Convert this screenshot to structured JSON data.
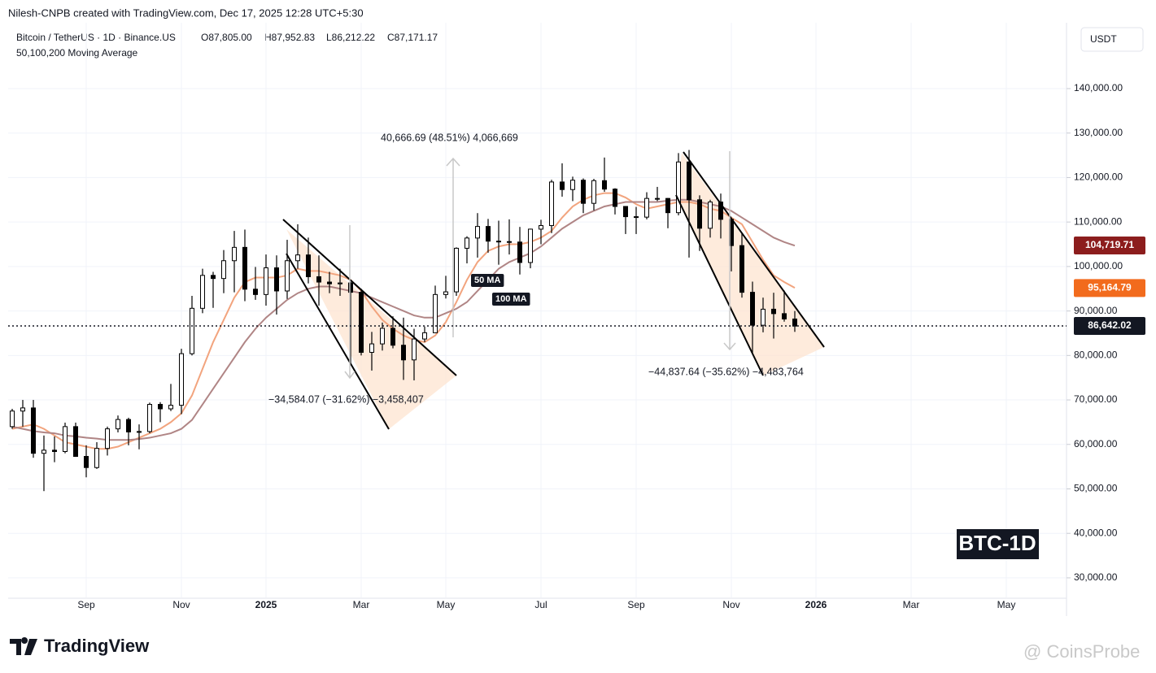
{
  "chart_data": {
    "type": "candlestick",
    "header": "Nilesh-CNPB created with TradingView.com, Dec 17, 2025 12:28 UTC+5:30",
    "symbol": "Bitcoin / TetherUS · 1D · Binance.US",
    "ohlc": [
      "O87,805.00",
      "H87,952.83",
      "L86,212.22",
      "C87,171.17"
    ],
    "indicator": "50,100,200 Moving Average",
    "currency": "USDT",
    "watermark": "BTC-1D",
    "brand": "TradingView",
    "credit": "@ CoinsProbe",
    "categories": [
      null,
      null,
      null,
      null,
      null,
      null,
      null,
      "Sep",
      null,
      null,
      null,
      null,
      null,
      null,
      null,
      null,
      "Nov",
      null,
      null,
      null,
      null,
      null,
      null,
      null,
      "2025",
      null,
      null,
      null,
      null,
      null,
      null,
      null,
      null,
      "Mar",
      null,
      null,
      null,
      null,
      null,
      null,
      null,
      "May",
      null,
      null,
      null,
      null,
      null,
      null,
      null,
      null,
      "Jul",
      null,
      null,
      null,
      null,
      null,
      null,
      null,
      null,
      "Sep",
      null,
      null,
      null,
      null,
      null,
      null,
      null,
      null,
      "Nov",
      null,
      null,
      null,
      null,
      null,
      null,
      null,
      "2026",
      null,
      null,
      null,
      null,
      null,
      null,
      null,
      null,
      "Mar",
      null,
      null,
      null,
      null,
      null,
      null,
      null,
      null,
      "May",
      null,
      null,
      null,
      null,
      null,
      null
    ],
    "open": [
      64000,
      67500,
      68200,
      58000,
      58700,
      58400,
      64000,
      57300,
      54800,
      59100,
      63500,
      65600,
      62800,
      62900,
      69000,
      68000,
      68800,
      80400,
      90600,
      98000,
      97300,
      101300,
      104300,
      94900,
      93700,
      99700,
      94500,
      101300,
      102600,
      97700,
      96500,
      96100,
      96300,
      94200,
      80700,
      82600,
      86100,
      82300,
      79000,
      83700,
      85100,
      93700,
      94300,
      104100,
      106400,
      109000,
      105700,
      105600,
      105500,
      100900,
      108400,
      109200,
      119000,
      117300,
      119400,
      114200,
      119300,
      117400,
      113500,
      111200,
      111100,
      115300,
      115300,
      112100,
      123500,
      115000,
      108600,
      114500,
      110600,
      104700,
      94200,
      86800,
      90400,
      89400,
      88200,
      null,
      null,
      null,
      null,
      null,
      null,
      null,
      null,
      null,
      null,
      null,
      null,
      null,
      null,
      null,
      null,
      null,
      null,
      null,
      null,
      null,
      null,
      null,
      null,
      null,
      null
    ],
    "high": [
      68000,
      70000,
      70000,
      62000,
      61800,
      64900,
      64900,
      59800,
      60500,
      64000,
      66500,
      66000,
      64500,
      69400,
      69500,
      73600,
      81500,
      93400,
      99500,
      98800,
      103700,
      108000,
      108300,
      99900,
      102700,
      102500,
      106000,
      109500,
      106500,
      102500,
      98800,
      99500,
      96500,
      95000,
      85300,
      87400,
      88800,
      88500,
      86000,
      86500,
      95700,
      97900,
      104300,
      106800,
      112000,
      110700,
      110300,
      110600,
      108900,
      108500,
      110500,
      119500,
      123200,
      120200,
      119800,
      119700,
      124500,
      117600,
      113600,
      113400,
      116700,
      117900,
      115400,
      125500,
      126200,
      116000,
      115000,
      116400,
      110700,
      107500,
      96600,
      93000,
      94100,
      94600,
      90000,
      null,
      null,
      null,
      null,
      null,
      null,
      null,
      null,
      null,
      null,
      null,
      null,
      null,
      null,
      null,
      null,
      null,
      null,
      null,
      null,
      null,
      null,
      null,
      null,
      null,
      null
    ],
    "low": [
      63500,
      64000,
      57000,
      49500,
      56000,
      58000,
      57200,
      52600,
      54500,
      57500,
      62700,
      59800,
      58900,
      62500,
      65000,
      67500,
      66800,
      80000,
      89500,
      90700,
      94000,
      94200,
      92200,
      92500,
      91200,
      89200,
      92700,
      99500,
      96200,
      91200,
      94000,
      93400,
      78200,
      80000,
      76600,
      81100,
      81600,
      74500,
      74400,
      83000,
      85000,
      92800,
      93400,
      100700,
      102000,
      103100,
      100400,
      102700,
      98200,
      99600,
      105000,
      107500,
      115700,
      114700,
      112000,
      112600,
      116800,
      111700,
      107300,
      107300,
      110600,
      114700,
      108600,
      111500,
      102000,
      103500,
      106500,
      106300,
      98900,
      93000,
      80600,
      85200,
      83800,
      87600,
      85300,
      null,
      null,
      null,
      null,
      null,
      null,
      null,
      null,
      null,
      null,
      null,
      null,
      null,
      null,
      null,
      null,
      null,
      null,
      null,
      null,
      null,
      null,
      null,
      null,
      null,
      null
    ],
    "close": [
      67500,
      68200,
      58000,
      58700,
      58400,
      64000,
      57300,
      54800,
      59100,
      63500,
      65600,
      62800,
      62900,
      69000,
      68000,
      68800,
      80400,
      90600,
      98000,
      97300,
      101300,
      104300,
      94900,
      93700,
      99700,
      94500,
      101300,
      102600,
      97700,
      96500,
      96100,
      96300,
      94200,
      80700,
      82600,
      86100,
      82300,
      79000,
      83700,
      85100,
      93700,
      94300,
      104100,
      106400,
      109000,
      105700,
      105600,
      105500,
      100900,
      108400,
      109200,
      119000,
      117300,
      119400,
      114200,
      119300,
      117400,
      113500,
      111200,
      111100,
      115300,
      115300,
      112100,
      123500,
      115000,
      108600,
      114500,
      110600,
      104700,
      94200,
      86800,
      90400,
      89400,
      88200,
      86600,
      null,
      null,
      null,
      null,
      null,
      null,
      null,
      null,
      null,
      null,
      null,
      null,
      null,
      null,
      null,
      null,
      null,
      null,
      null,
      null,
      null,
      null,
      null,
      null,
      null,
      null
    ],
    "series": [
      {
        "name": "50 MA",
        "color": "#f2a47e",
        "label_color": "#f26b1d",
        "last": {
          "value": 95164.79,
          "label": "95,164.79"
        },
        "values": [
          63500,
          64000,
          64500,
          63500,
          62000,
          60500,
          60000,
          59500,
          59000,
          59000,
          59500,
          60500,
          61500,
          62500,
          63500,
          65000,
          67000,
          71000,
          77000,
          83000,
          88000,
          93000,
          96500,
          97500,
          97500,
          97500,
          98000,
          99500,
          99000,
          99000,
          98500,
          98000,
          97000,
          94500,
          91000,
          88000,
          86000,
          84500,
          83500,
          83000,
          84500,
          87500,
          92000,
          97000,
          101000,
          103500,
          104500,
          105000,
          105000,
          105500,
          106500,
          108000,
          111000,
          113500,
          115000,
          116000,
          116500,
          116500,
          115500,
          114000,
          113000,
          113500,
          114000,
          114500,
          114500,
          114000,
          113000,
          112500,
          111000,
          109500,
          105500,
          101500,
          98000,
          96500,
          95200,
          null,
          null,
          null,
          null,
          null,
          null,
          null,
          null,
          null,
          null,
          null,
          null,
          null,
          null,
          null,
          null,
          null,
          null,
          null,
          null,
          null,
          null,
          null,
          null,
          null,
          null
        ]
      },
      {
        "name": "100 MA",
        "color": "#b08585",
        "label_color": "#8c1d1d",
        "last": {
          "value": 104719.71,
          "label": "104,719.71"
        },
        "values": [
          64000,
          63500,
          63000,
          62700,
          62500,
          62000,
          61800,
          61500,
          61300,
          61000,
          61000,
          61000,
          61200,
          61500,
          62000,
          62500,
          63500,
          65500,
          69000,
          72500,
          76000,
          79500,
          83000,
          86000,
          88500,
          90500,
          92500,
          94000,
          95000,
          95500,
          95500,
          95000,
          94500,
          94000,
          93000,
          92000,
          91000,
          90000,
          89000,
          88500,
          88500,
          89500,
          90500,
          92000,
          94500,
          97000,
          99500,
          101000,
          102000,
          103000,
          104500,
          106500,
          108500,
          110000,
          111500,
          112500,
          113500,
          114000,
          114500,
          114500,
          114500,
          114500,
          114800,
          115000,
          115000,
          114500,
          114000,
          113500,
          112500,
          111000,
          109500,
          108000,
          106500,
          105500,
          104700,
          null,
          null,
          null,
          null,
          null,
          null,
          null,
          null,
          null,
          null,
          null,
          null,
          null,
          null,
          null,
          null,
          null,
          null,
          null,
          null,
          null,
          null,
          null,
          null,
          null,
          null
        ]
      }
    ],
    "last_price": {
      "value": 86642.02,
      "label": "86,642.02"
    },
    "annotations": [
      "40,666.69 (48.51%) 4,066,669",
      "−34,584.07 (−31.62%) −3,458,407",
      "−44,837.64 (−35.62%) −4,483,764"
    ],
    "ylim": [
      25600,
      154800
    ],
    "yticks": [
      {
        "value": 30000,
        "label": "30,000.00"
      },
      {
        "value": 40000,
        "label": "40,000.00"
      },
      {
        "value": 50000,
        "label": "50,000.00"
      },
      {
        "value": 60000,
        "label": "60,000.00"
      },
      {
        "value": 70000,
        "label": "70,000.00"
      },
      {
        "value": 80000,
        "label": "80,000.00"
      },
      {
        "value": 90000,
        "label": "90,000.00"
      },
      {
        "value": 100000,
        "label": "100,000.00"
      },
      {
        "value": 110000,
        "label": "110,000.00"
      },
      {
        "value": 120000,
        "label": "120,000.00"
      },
      {
        "value": 130000,
        "label": "130,000.00"
      },
      {
        "value": 140000,
        "label": "140,000.00"
      }
    ],
    "grid": true
  }
}
